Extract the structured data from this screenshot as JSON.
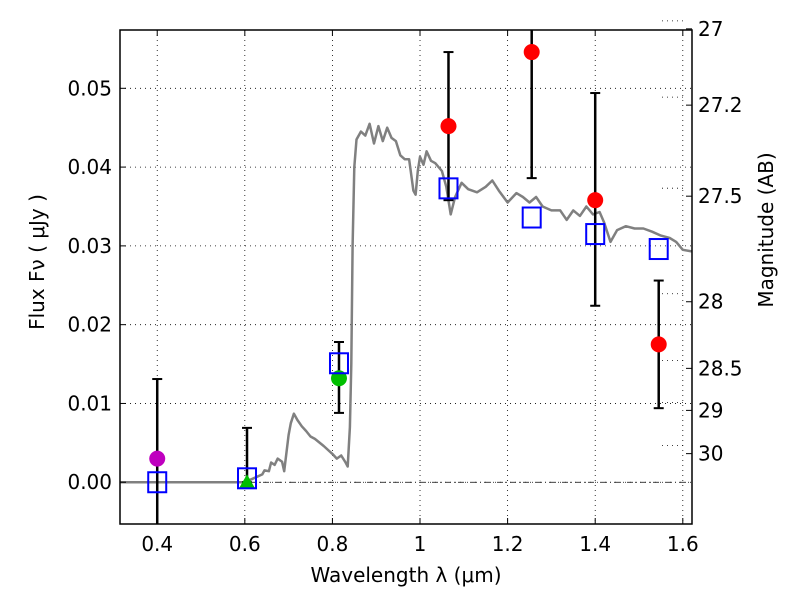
{
  "chart_data": {
    "type": "scatter",
    "title": "",
    "xlabel": "Wavelength  λ (μm)",
    "ylabel": "Flux  Fν  ( μJy )",
    "ylabel_right": "Magnitude (AB)",
    "xlim": [
      0.315,
      1.621
    ],
    "ylim": [
      -0.0053,
      0.0574
    ],
    "grid": true,
    "x_ticks": [
      {
        "value": 0.4,
        "label": "0.4"
      },
      {
        "value": 0.6,
        "label": "0.6"
      },
      {
        "value": 0.8,
        "label": "0.8"
      },
      {
        "value": 1.0,
        "label": "1"
      },
      {
        "value": 1.2,
        "label": "1.2"
      },
      {
        "value": 1.4,
        "label": "1.4"
      },
      {
        "value": 1.6,
        "label": "1.6"
      }
    ],
    "y_ticks": [
      {
        "value": 0.0,
        "label": "0.00"
      },
      {
        "value": 0.01,
        "label": "0.01"
      },
      {
        "value": 0.02,
        "label": "0.02"
      },
      {
        "value": 0.03,
        "label": "0.03"
      },
      {
        "value": 0.04,
        "label": "0.04"
      },
      {
        "value": 0.05,
        "label": "0.05"
      }
    ],
    "y_right_ticks": [
      {
        "value": 27,
        "label": "27"
      },
      {
        "value": 27.2,
        "label": "27.2"
      },
      {
        "value": 27.5,
        "label": "27.5"
      },
      {
        "value": 28,
        "label": "28"
      },
      {
        "value": 28.5,
        "label": "28.5"
      },
      {
        "value": 29,
        "label": "29"
      },
      {
        "value": 30,
        "label": "30"
      }
    ],
    "zero_line": 0.0,
    "series": [
      {
        "name": "model-spectrum",
        "kind": "line",
        "color": "#808080",
        "x": [
          0.315,
          0.4,
          0.5,
          0.6,
          0.62,
          0.64,
          0.645,
          0.655,
          0.66,
          0.668,
          0.675,
          0.685,
          0.69,
          0.7,
          0.705,
          0.712,
          0.72,
          0.73,
          0.74,
          0.75,
          0.76,
          0.78,
          0.8,
          0.81,
          0.82,
          0.83,
          0.835,
          0.84,
          0.843,
          0.846,
          0.85,
          0.855,
          0.865,
          0.875,
          0.885,
          0.895,
          0.905,
          0.915,
          0.925,
          0.935,
          0.945,
          0.955,
          0.965,
          0.975,
          0.985,
          0.99,
          0.995,
          1.0,
          1.008,
          1.015,
          1.025,
          1.035,
          1.05,
          1.06,
          1.07,
          1.08,
          1.095,
          1.11,
          1.13,
          1.15,
          1.165,
          1.18,
          1.2,
          1.22,
          1.235,
          1.25,
          1.265,
          1.28,
          1.3,
          1.32,
          1.335,
          1.35,
          1.365,
          1.38,
          1.395,
          1.41,
          1.42,
          1.435,
          1.45,
          1.47,
          1.49,
          1.51,
          1.53,
          1.55,
          1.57,
          1.585,
          1.6,
          1.62
        ],
        "y": [
          0.0,
          0.0,
          0.0,
          0.0,
          0.0005,
          0.001,
          0.0015,
          0.0014,
          0.0025,
          0.0022,
          0.003,
          0.0026,
          0.0014,
          0.006,
          0.0075,
          0.0087,
          0.0079,
          0.0071,
          0.0065,
          0.0058,
          0.0055,
          0.0046,
          0.0036,
          0.003,
          0.0034,
          0.0025,
          0.002,
          0.007,
          0.015,
          0.03,
          0.04,
          0.0435,
          0.0445,
          0.044,
          0.0455,
          0.043,
          0.0452,
          0.0433,
          0.045,
          0.0437,
          0.0433,
          0.0415,
          0.041,
          0.041,
          0.037,
          0.0365,
          0.0395,
          0.0413,
          0.0403,
          0.042,
          0.0408,
          0.0405,
          0.0395,
          0.0375,
          0.034,
          0.0362,
          0.038,
          0.0372,
          0.0368,
          0.0375,
          0.0383,
          0.037,
          0.0355,
          0.0367,
          0.0362,
          0.0355,
          0.0362,
          0.035,
          0.0345,
          0.0345,
          0.0333,
          0.0345,
          0.0338,
          0.035,
          0.034,
          0.0343,
          0.033,
          0.0305,
          0.032,
          0.0325,
          0.0322,
          0.0322,
          0.0318,
          0.0313,
          0.031,
          0.0305,
          0.0295,
          0.0293
        ]
      },
      {
        "name": "observed-upper-limit-magenta",
        "kind": "circle",
        "color": "#bf00bf",
        "points": [
          {
            "x": 0.4,
            "y": 0.003,
            "err_low": -0.01,
            "err_high": 0.0131
          }
        ]
      },
      {
        "name": "observed-green-triangle",
        "kind": "triangle",
        "color": "#00bf00",
        "points": [
          {
            "x": 0.605,
            "y": 0.0,
            "err_low": 0.0,
            "err_high": 0.0069
          }
        ]
      },
      {
        "name": "observed-green-circle",
        "kind": "circle",
        "color": "#00bf00",
        "points": [
          {
            "x": 0.815,
            "y": 0.0132,
            "err_low": 0.0088,
            "err_high": 0.0178
          }
        ]
      },
      {
        "name": "observed-red",
        "kind": "circle",
        "color": "#ff0000",
        "points": [
          {
            "x": 1.065,
            "y": 0.0452,
            "err_low": 0.0358,
            "err_high": 0.0546
          },
          {
            "x": 1.255,
            "y": 0.0546,
            "err_low": 0.0386,
            "err_high": 0.07
          },
          {
            "x": 1.4,
            "y": 0.0358,
            "err_low": 0.0224,
            "err_high": 0.0494
          },
          {
            "x": 1.545,
            "y": 0.0175,
            "err_low": 0.0094,
            "err_high": 0.0256
          }
        ]
      },
      {
        "name": "model-photometry",
        "kind": "square",
        "color": "#0000ff",
        "points": [
          {
            "x": 0.4,
            "y": 0.0
          },
          {
            "x": 0.605,
            "y": 0.0005
          },
          {
            "x": 0.815,
            "y": 0.0151
          },
          {
            "x": 1.065,
            "y": 0.0373
          },
          {
            "x": 1.255,
            "y": 0.0336
          },
          {
            "x": 1.4,
            "y": 0.0315
          },
          {
            "x": 1.545,
            "y": 0.0296
          }
        ]
      }
    ]
  }
}
